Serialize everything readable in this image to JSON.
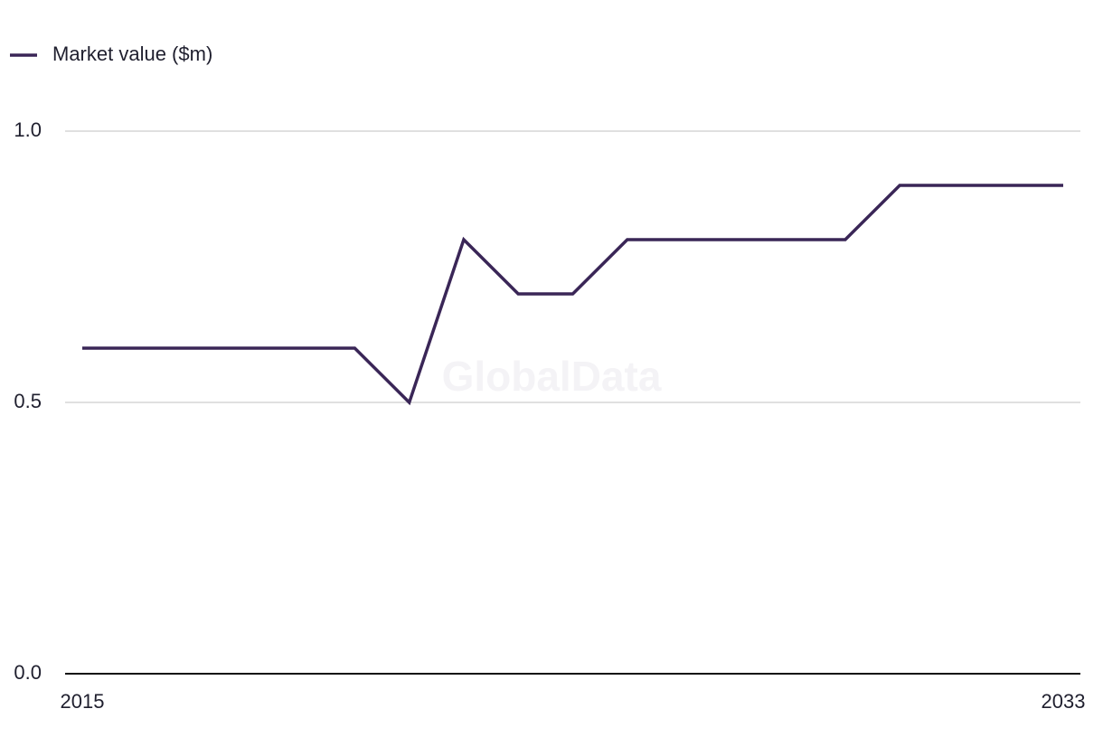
{
  "chart_data": {
    "type": "line",
    "watermark": "GlobalData",
    "x": [
      2015,
      2016,
      2017,
      2018,
      2019,
      2020,
      2021,
      2022,
      2023,
      2024,
      2025,
      2026,
      2027,
      2028,
      2029,
      2030,
      2031,
      2032,
      2033
    ],
    "series": [
      {
        "name": "Market value ($m)",
        "color": "#3a2657",
        "values": [
          0.6,
          0.6,
          0.6,
          0.6,
          0.6,
          0.6,
          0.5,
          0.8,
          0.7,
          0.7,
          0.8,
          0.8,
          0.8,
          0.8,
          0.8,
          0.9,
          0.9,
          0.9,
          0.9
        ]
      }
    ],
    "xlim": [
      2015,
      2033
    ],
    "xticks": [
      2015,
      2033
    ],
    "ylim": [
      0,
      1
    ],
    "yticks": [
      {
        "value": 0,
        "label": "0.0"
      },
      0.5,
      {
        "value": 1,
        "label": "1.0"
      }
    ],
    "grid": true,
    "legend": "top-left"
  }
}
